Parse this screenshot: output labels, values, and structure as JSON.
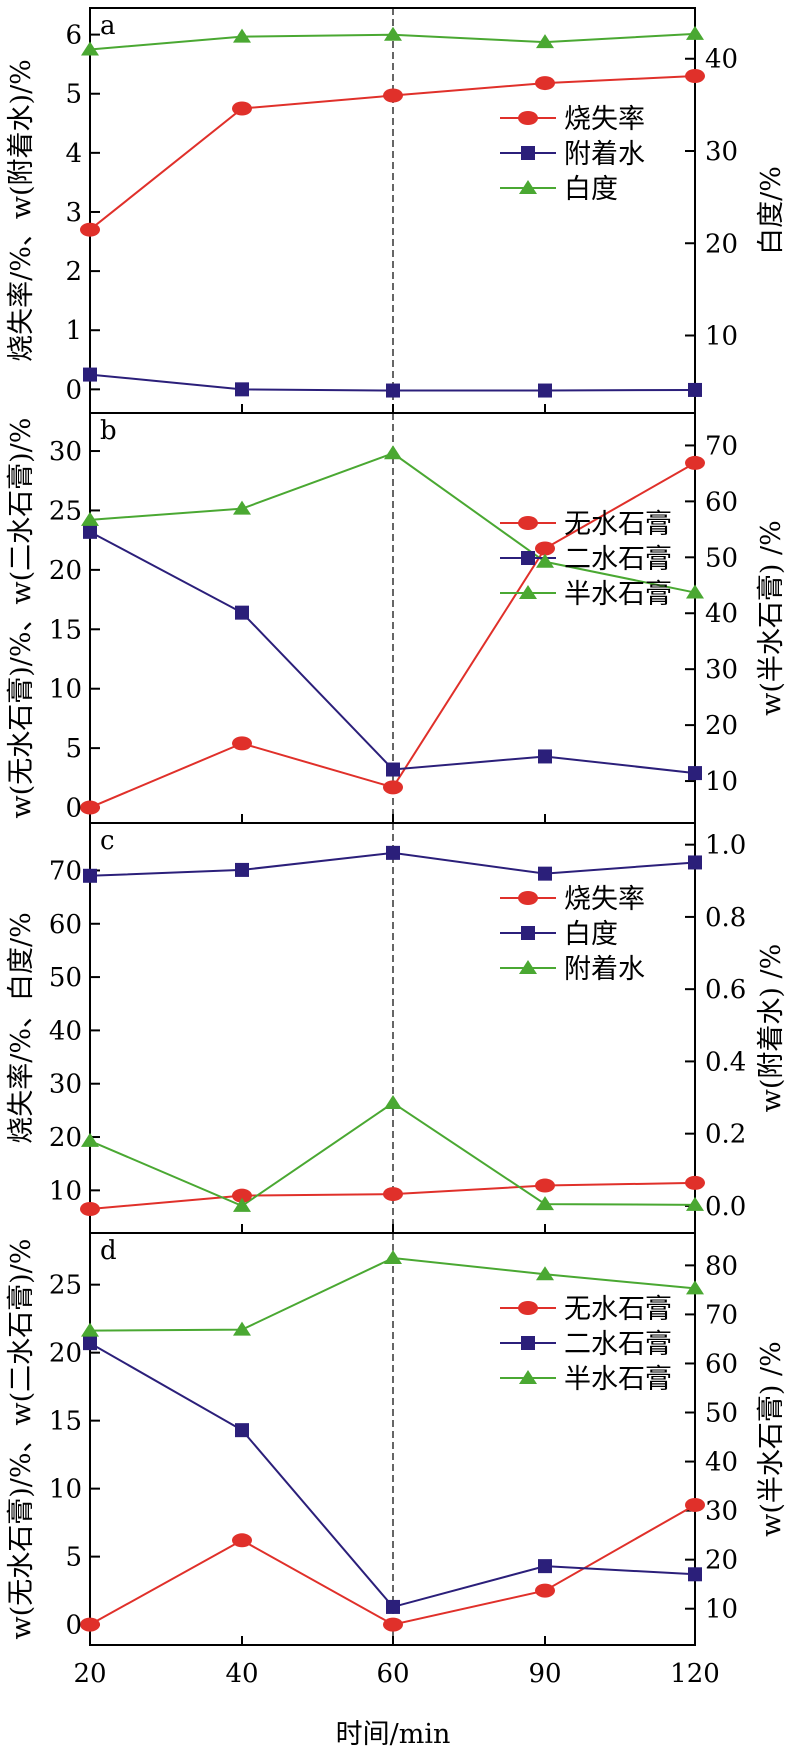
{
  "chart_data": {
    "x_categories": [
      "20",
      "40",
      "60",
      "90",
      "120"
    ],
    "xlabel": "时间/min",
    "reference_line_x": "60",
    "panels": [
      {
        "id": "a",
        "type": "line",
        "panel_label": "a",
        "y_left": {
          "label": "烧失率/%、w(附着水)/%",
          "lim": [
            -0.4,
            6.45
          ],
          "ticks": [
            0,
            1,
            2,
            3,
            4,
            5,
            6
          ]
        },
        "y_right": {
          "label": "白度/%",
          "lim": [
            1.6,
            45.5
          ],
          "ticks": [
            10,
            20,
            30,
            40
          ]
        },
        "legend": {
          "position": "right-middle"
        },
        "series": [
          {
            "name": "烧失率",
            "axis": "left",
            "color": "#e0302a",
            "marker": "circle",
            "values": [
              2.7,
              4.75,
              4.97,
              5.18,
              5.3
            ]
          },
          {
            "name": "附着水",
            "axis": "left",
            "color": "#2b1f7a",
            "marker": "square",
            "values": [
              0.25,
              0.0,
              -0.02,
              -0.02,
              -0.01
            ]
          },
          {
            "name": "白度",
            "axis": "right",
            "color": "#4aa832",
            "marker": "triangle",
            "values": [
              41.0,
              42.4,
              42.6,
              41.8,
              42.7
            ]
          }
        ]
      },
      {
        "id": "b",
        "type": "line",
        "panel_label": "b",
        "y_left": {
          "label": "w(无水石膏)/%、w(二水石膏)/%",
          "lim": [
            -1.3,
            33.2
          ],
          "ticks": [
            0,
            5,
            10,
            15,
            20,
            25,
            30
          ]
        },
        "y_right": {
          "label": "w(半水石膏) /%",
          "lim": [
            2.5,
            75.8
          ],
          "ticks": [
            10,
            20,
            30,
            40,
            50,
            60,
            70
          ]
        },
        "legend": {
          "position": "right-middle"
        },
        "series": [
          {
            "name": "无水石膏",
            "axis": "left",
            "color": "#e0302a",
            "marker": "circle",
            "values": [
              0.0,
              5.4,
              1.7,
              21.8,
              29.0
            ]
          },
          {
            "name": "二水石膏",
            "axis": "left",
            "color": "#2b1f7a",
            "marker": "square",
            "values": [
              23.2,
              16.4,
              3.2,
              4.3,
              2.9
            ]
          },
          {
            "name": "半水石膏",
            "axis": "right",
            "color": "#4aa832",
            "marker": "triangle",
            "values": [
              56.7,
              58.7,
              68.6,
              49.2,
              43.7
            ]
          }
        ]
      },
      {
        "id": "c",
        "type": "line",
        "panel_label": "c",
        "y_left": {
          "label": "烧失率/%、白度/%",
          "lim": [
            2.0,
            78.9
          ],
          "ticks": [
            10,
            20,
            30,
            40,
            50,
            60,
            70
          ]
        },
        "y_right": {
          "label": "w(附着水) /%",
          "lim": [
            -0.075,
            1.06
          ],
          "ticks": [
            "0.0",
            "0.2",
            "0.4",
            "0.6",
            "0.8",
            "1.0"
          ]
        },
        "legend": {
          "position": "right-top"
        },
        "series": [
          {
            "name": "烧失率",
            "axis": "left",
            "color": "#e0302a",
            "marker": "circle",
            "values": [
              6.5,
              9.0,
              9.3,
              10.9,
              11.4
            ]
          },
          {
            "name": "白度",
            "axis": "left",
            "color": "#2b1f7a",
            "marker": "square",
            "values": [
              69.0,
              70.1,
              73.3,
              69.4,
              71.5
            ]
          },
          {
            "name": "附着水",
            "axis": "right",
            "color": "#4aa832",
            "marker": "triangle",
            "values": [
              0.18,
              0.0,
              0.285,
              0.005,
              0.003
            ]
          }
        ]
      },
      {
        "id": "d",
        "type": "line",
        "panel_label": "d",
        "y_left": {
          "label": "w(无水石膏)/%、w(二水石膏)/%",
          "lim": [
            -1.5,
            28.8
          ],
          "ticks": [
            0,
            5,
            10,
            15,
            20,
            25
          ]
        },
        "y_right": {
          "label": "w(半水石膏) /%",
          "lim": [
            2.6,
            86.6
          ],
          "ticks": [
            10,
            20,
            30,
            40,
            50,
            60,
            70,
            80
          ]
        },
        "legend": {
          "position": "right-top"
        },
        "series": [
          {
            "name": "无水石膏",
            "axis": "left",
            "color": "#e0302a",
            "marker": "circle",
            "values": [
              0.0,
              6.2,
              0.0,
              2.5,
              8.8
            ]
          },
          {
            "name": "二水石膏",
            "axis": "left",
            "color": "#2b1f7a",
            "marker": "square",
            "values": [
              20.7,
              14.3,
              1.3,
              4.3,
              3.7
            ]
          },
          {
            "name": "半水石膏",
            "axis": "right",
            "color": "#4aa832",
            "marker": "triangle",
            "values": [
              66.7,
              66.9,
              81.5,
              78.2,
              75.3
            ]
          }
        ]
      }
    ]
  }
}
